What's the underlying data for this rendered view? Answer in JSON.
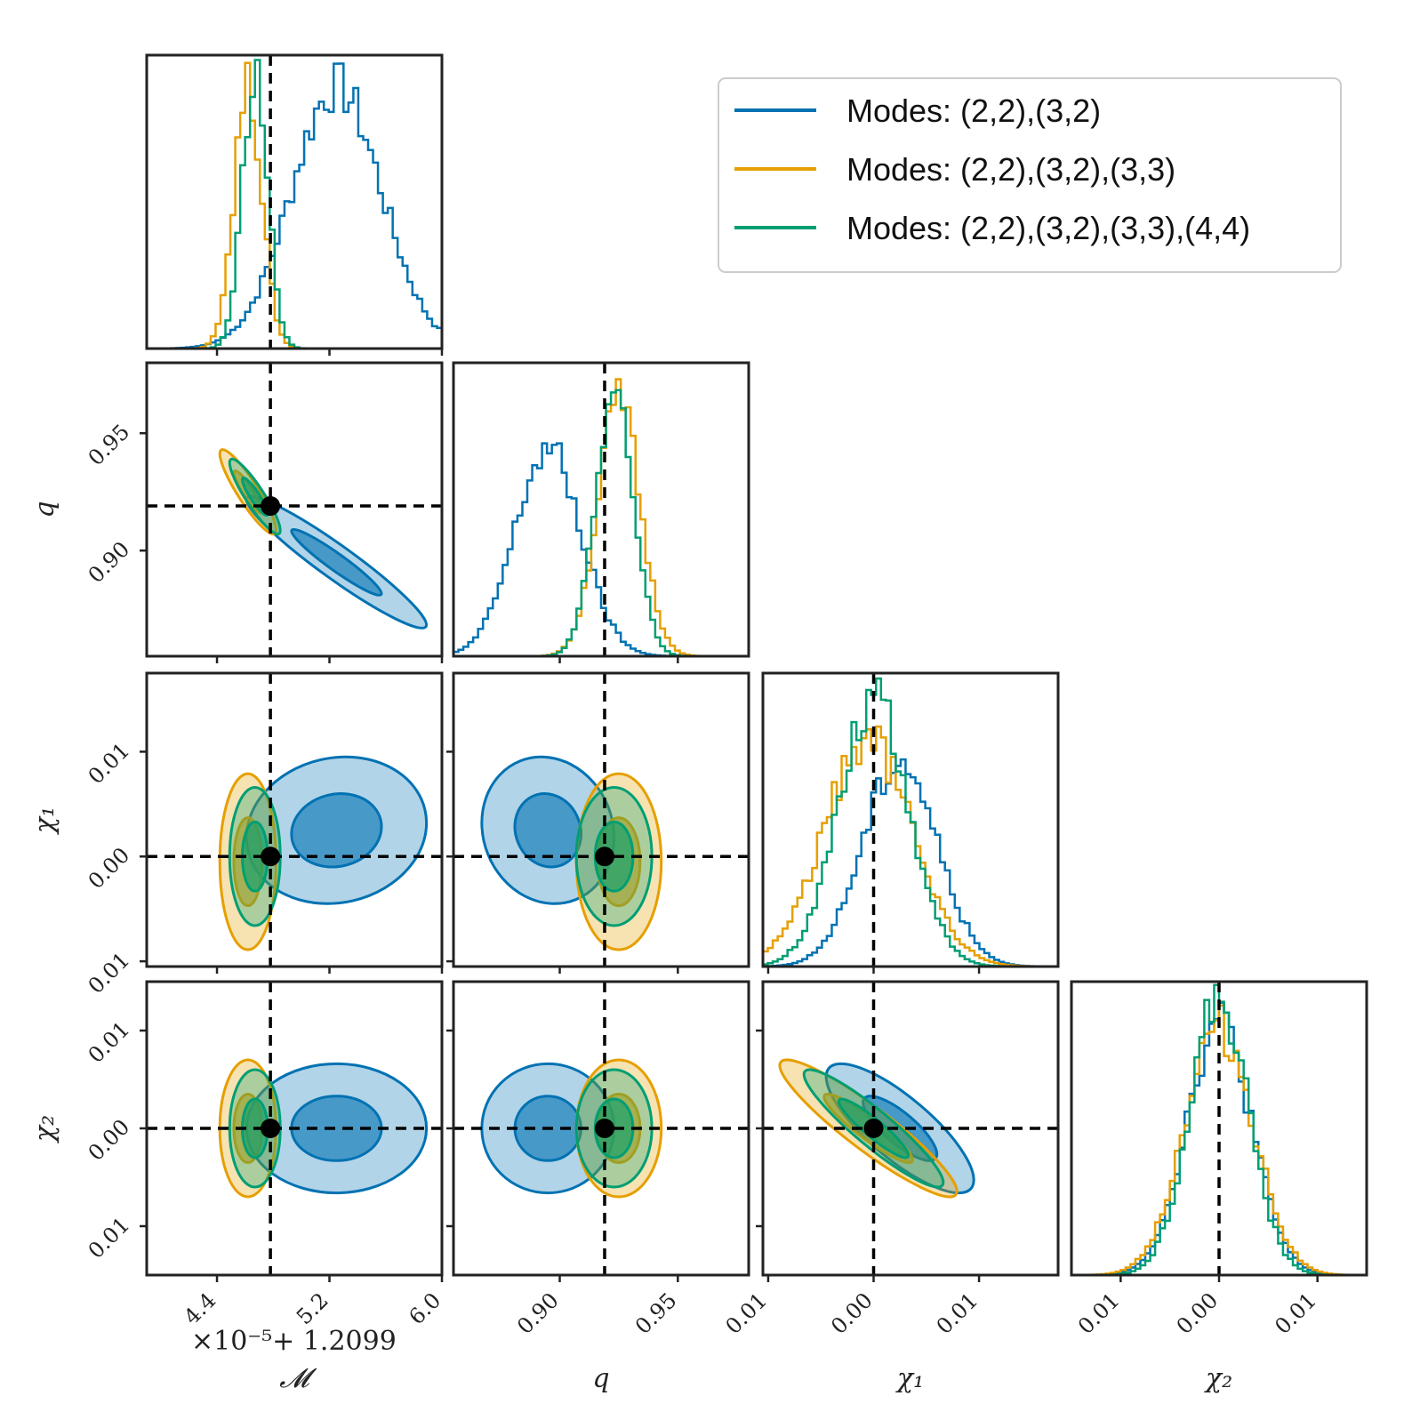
{
  "chart_data": {
    "type": "corner",
    "parameters": [
      {
        "name": "Mc",
        "label": "𝓜",
        "range": [
          3.9,
          6.0
        ],
        "ticks": [
          4.4,
          5.2,
          6.0
        ],
        "tick_labels": [
          "4.4",
          "5.2",
          "6.0"
        ],
        "offset": "×10⁻⁵+  1.2099",
        "truth": 4.78
      },
      {
        "name": "q",
        "label": "q",
        "range": [
          0.855,
          0.98
        ],
        "ticks": [
          0.9,
          0.95
        ],
        "tick_labels": [
          "0.90",
          "0.95"
        ],
        "truth": 0.919
      },
      {
        "name": "chi1",
        "label": "χ₁",
        "range": [
          -0.0105,
          0.0175
        ],
        "ticks": [
          -0.01,
          0.0,
          0.01
        ],
        "tick_labels": [
          "0.01",
          "0.00",
          "0.01"
        ],
        "truth": 0.0
      },
      {
        "name": "chi2",
        "label": "χ₂",
        "range": [
          -0.015,
          0.015
        ],
        "ticks": [
          -0.01,
          0.0,
          0.01
        ],
        "tick_labels": [
          "0.01",
          "0.00",
          "0.01"
        ],
        "truth": 0.0
      }
    ],
    "series": [
      {
        "name": "Modes:  (2,2),(3,2)",
        "color": "#0072b2",
        "mean": [
          5.25,
          0.895,
          0.0025,
          0.0
        ],
        "sd": [
          0.32,
          0.014,
          0.0035,
          0.0033
        ],
        "corr": [
          [
            1.0,
            -0.95,
            0.1,
            0.0
          ],
          [
            -0.95,
            1.0,
            -0.1,
            0.0
          ],
          [
            0.1,
            -0.1,
            1.0,
            -0.8
          ],
          [
            0.0,
            0.0,
            -0.8,
            1.0
          ]
        ],
        "peak": [
          0.95,
          0.75,
          0.75,
          0.92
        ]
      },
      {
        "name": "Modes:  (2,2),(3,2),(3,3)",
        "color": "#e69f00",
        "mean": [
          4.62,
          0.925,
          -0.0005,
          0.0
        ],
        "sd": [
          0.1,
          0.009,
          0.0042,
          0.0035
        ],
        "corr": [
          [
            1.0,
            -0.9,
            0.0,
            0.0
          ],
          [
            -0.9,
            1.0,
            0.0,
            0.0
          ],
          [
            0.0,
            0.0,
            1.0,
            -0.92
          ],
          [
            0.0,
            0.0,
            -0.92,
            1.0
          ]
        ],
        "peak": [
          0.95,
          0.92,
          0.82,
          0.9
        ]
      },
      {
        "name": "Modes:  (2,2),(3,2),(3,3),(4,4)",
        "color": "#009e73",
        "mean": [
          4.67,
          0.923,
          0.0,
          0.0
        ],
        "sd": [
          0.09,
          0.008,
          0.0033,
          0.003
        ],
        "corr": [
          [
            1.0,
            -0.9,
            0.0,
            0.0
          ],
          [
            -0.9,
            1.0,
            0.0,
            0.0
          ],
          [
            0.0,
            0.0,
            1.0,
            -0.92
          ],
          [
            0.0,
            0.0,
            -0.92,
            1.0
          ]
        ],
        "peak": [
          1.0,
          0.98,
          0.98,
          1.0
        ]
      }
    ],
    "credible_levels": [
      "39.3%",
      "86.5%"
    ],
    "legend_location": "top-right"
  }
}
